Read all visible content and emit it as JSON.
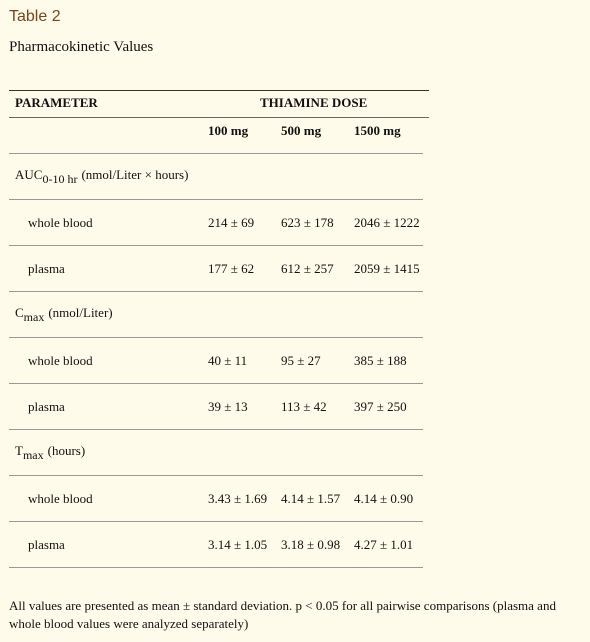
{
  "header": {
    "label": "Table 2",
    "title": "Pharmacokinetic Values"
  },
  "table": {
    "column_header": "PARAMETER",
    "group_header": "THIAMINE DOSE",
    "doses": [
      "100 mg",
      "500 mg",
      "1500 mg"
    ],
    "sections": [
      {
        "label": {
          "main": "AUC",
          "sub": "0-10 hr",
          "rest": "(nmol/Liter × hours)"
        },
        "rows": [
          {
            "label": "whole blood",
            "values": [
              "214 ± 69",
              "623 ± 178",
              "2046 ± 1222"
            ]
          },
          {
            "label": "plasma",
            "values": [
              "177 ± 62",
              "612 ± 257",
              "2059 ± 1415"
            ]
          }
        ]
      },
      {
        "label": {
          "main": "C",
          "sub": "max",
          "rest": "(nmol/Liter)"
        },
        "rows": [
          {
            "label": "whole blood",
            "values": [
              "40 ± 11",
              "95 ± 27",
              "385 ± 188"
            ]
          },
          {
            "label": "plasma",
            "values": [
              "39 ± 13",
              "113 ± 42",
              "397 ± 250"
            ]
          }
        ]
      },
      {
        "label": {
          "main": "T",
          "sub": "max",
          "rest": "(hours)"
        },
        "rows": [
          {
            "label": "whole blood",
            "values": [
              "3.43 ± 1.69",
              "4.14 ± 1.57",
              "4.14 ± 0.90"
            ]
          },
          {
            "label": "plasma",
            "values": [
              "3.14 ± 1.05",
              "3.18 ± 0.98",
              "4.27 ± 1.01"
            ]
          }
        ]
      }
    ]
  },
  "footnote": "All values are presented as mean ± standard deviation. p < 0.05 for all pairwise comparisons (plasma and whole blood values were analyzed separately)"
}
